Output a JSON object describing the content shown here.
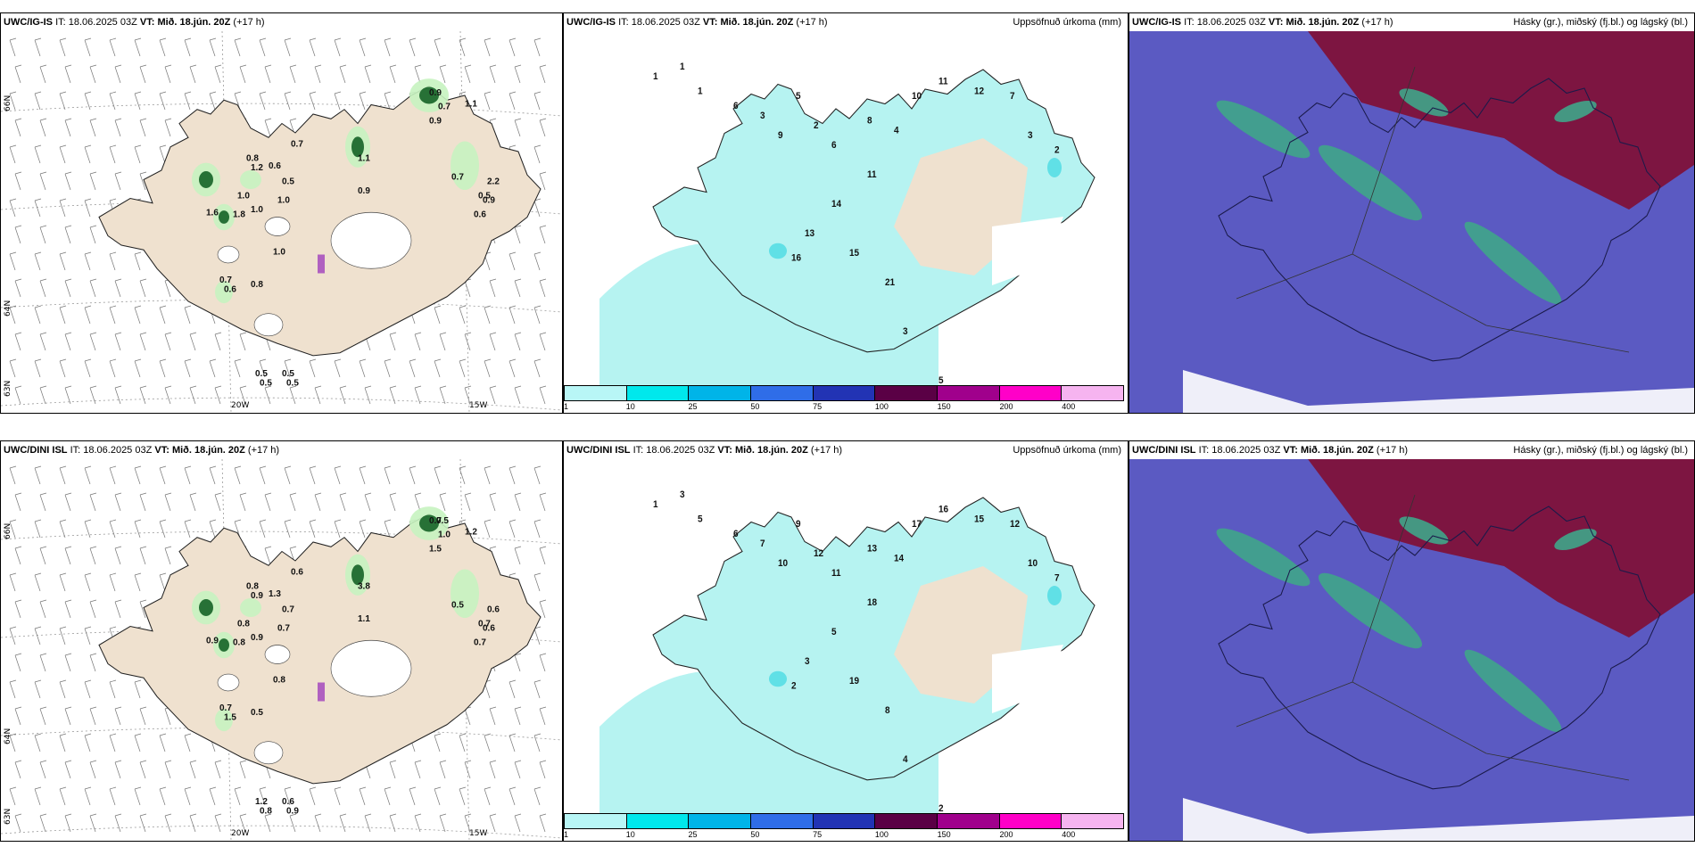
{
  "rows": [
    {
      "model": "UWC/IG-IS",
      "it_label": "IT:",
      "it_value": "18.06.2025 03Z",
      "vt_label": "VT:",
      "vt_value": "Mið. 18.jún. 20Z",
      "lead": "(+17 h)"
    },
    {
      "model": "UWC/DINI ISL",
      "it_label": "IT:",
      "it_value": "18.06.2025 03Z",
      "vt_label": "VT:",
      "vt_value": "Mið. 18.jún. 20Z",
      "lead": "(+17 h)"
    }
  ],
  "panel_titles": {
    "precip": "Uppsöfnuð úrkoma (mm)",
    "cloud": "Hásky (gr.), miðský (fj.bl.) og lágský (bl.)"
  },
  "axes": {
    "lon_labels": [
      "20W",
      "15W"
    ],
    "lat_labels": [
      "66N",
      "64N",
      "63N"
    ]
  },
  "colorbar": {
    "ticks": [
      "1",
      "10",
      "25",
      "50",
      "75",
      "100",
      "150",
      "200",
      "400"
    ],
    "colors": [
      "#b8f6f6",
      "#00e8ec",
      "#00b4e8",
      "#2f6de8",
      "#2233b4",
      "#5a0045",
      "#a0008c",
      "#ff00c8",
      "#f6b4f0"
    ]
  },
  "colors": {
    "land": "#efe1cf",
    "precip_light": "#b6f3f1",
    "precip_mid": "#60e0e6",
    "wind_green_light": "#c7f3c0",
    "wind_green_dark": "#0b5a1d",
    "cloud_low": "#5b5ac2",
    "cloud_high": "#7d1541",
    "cloud_mid": "#3fa58a"
  },
  "wind_values_top": [
    "0.9",
    "0.7",
    "0.9",
    "1.1",
    "0.8",
    "1.2",
    "0.6",
    "0.5",
    "0.7",
    "1.1",
    "1.6",
    "1.0",
    "1.0",
    "1.8",
    "1.0",
    "0.9",
    "1.0",
    "0.8",
    "0.7",
    "0.6",
    "0.5",
    "0.5",
    "0.5",
    "0.5",
    "0.7",
    "0.6",
    "0.9",
    "2.2",
    "0.5"
  ],
  "wind_values_bottom": [
    "0.7",
    "1.0",
    "1.5",
    "1.2",
    "0.8",
    "0.9",
    "1.3",
    "0.7",
    "0.6",
    "3.8",
    "0.9",
    "0.8",
    "0.9",
    "0.8",
    "0.7",
    "1.1",
    "0.8",
    "0.5",
    "0.7",
    "1.5",
    "1.2",
    "0.6",
    "0.8",
    "0.9",
    "0.5",
    "0.7",
    "0.6",
    "0.6",
    "0.7",
    "0.5"
  ],
  "precip_values_top": [
    "1",
    "1",
    "1",
    "6",
    "3",
    "5",
    "2",
    "9",
    "6",
    "8",
    "4",
    "10",
    "11",
    "12",
    "7",
    "3",
    "2",
    "14",
    "13",
    "16",
    "11",
    "15",
    "21",
    "3",
    "5"
  ],
  "precip_values_bottom": [
    "1",
    "3",
    "5",
    "6",
    "7",
    "9",
    "12",
    "10",
    "11",
    "13",
    "14",
    "17",
    "16",
    "15",
    "12",
    "10",
    "7",
    "5",
    "3",
    "2",
    "18",
    "19",
    "8",
    "4",
    "2"
  ]
}
